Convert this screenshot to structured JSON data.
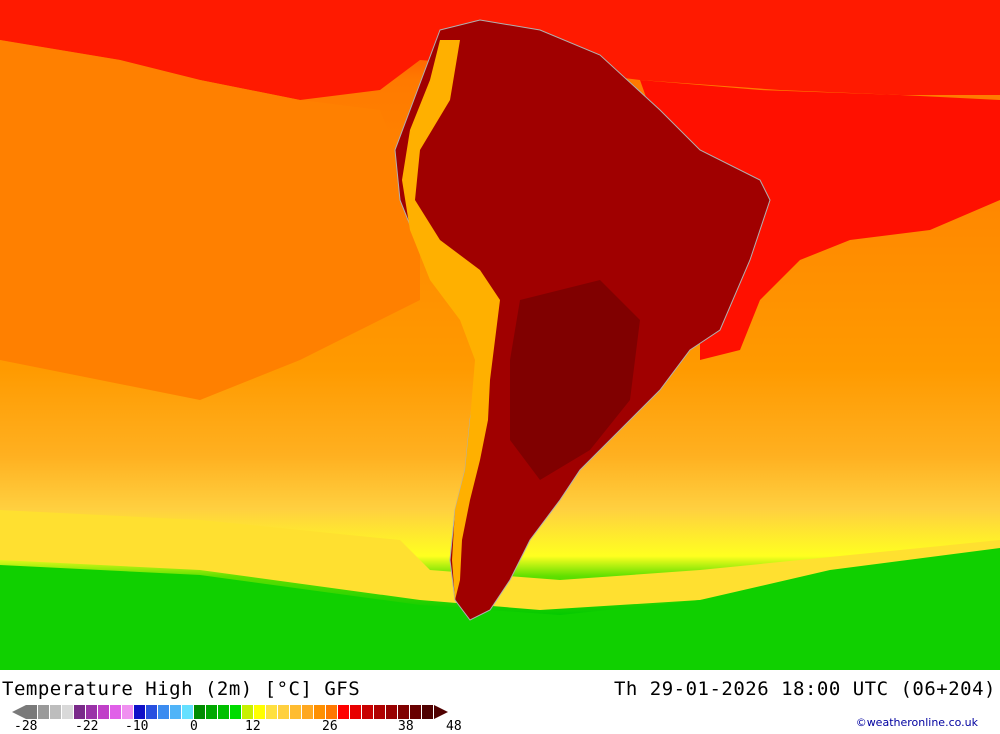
{
  "map": {
    "title": "Temperature High (2m) [°C] GFS",
    "valid_time": "Th 29-01-2026 18:00 UTC (06+204)",
    "credit": "©weatheronline.co.uk",
    "region": "South America"
  },
  "legend": {
    "ticks": [
      "-28",
      "-22",
      "-10",
      "0",
      "12",
      "26",
      "38",
      "48"
    ],
    "colors": [
      "#7a7a7a",
      "#9a9a9a",
      "#bdbdbd",
      "#d9d9d9",
      "#7a2a8a",
      "#9a32a8",
      "#c040c8",
      "#e060e8",
      "#f090f0",
      "#1010c8",
      "#2850e0",
      "#3c8cf0",
      "#50b4f8",
      "#64e0ff",
      "#008c00",
      "#00a800",
      "#00c000",
      "#00dc00",
      "#c8f000",
      "#ffff00",
      "#ffe040",
      "#ffd040",
      "#ffbc30",
      "#ffa820",
      "#ff9000",
      "#ff7800",
      "#ff0000",
      "#e80000",
      "#c80000",
      "#b00000",
      "#980000",
      "#800000",
      "#680000",
      "#500000"
    ]
  },
  "colors": {
    "ocean_warm": "#ff8c00",
    "ocean_hot": "#ff0000",
    "land_hot": "#a00000",
    "cool_green": "#00c800"
  }
}
